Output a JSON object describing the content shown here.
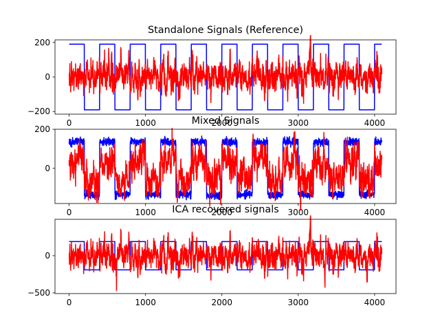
{
  "chart_data": [
    {
      "type": "line",
      "title": "Standalone Signals (Reference)",
      "xlim": [
        -185,
        4280
      ],
      "ylim": [
        -215,
        215
      ],
      "xticks": [
        0,
        1000,
        2000,
        3000,
        4000
      ],
      "yticks": [
        -200,
        0,
        200
      ],
      "grid": false,
      "series": [
        {
          "kind": "square",
          "color": "#0000ff",
          "period": 400,
          "phase": 200,
          "amp": 190,
          "n": 4096,
          "mean": 0
        },
        {
          "kind": "noise",
          "color": "#ff0000",
          "seed": 11,
          "sigma": 42,
          "n": 4096,
          "mean": 5,
          "peaks": [
            [
              520,
              110
            ],
            [
              2460,
              105
            ],
            [
              3160,
              180
            ]
          ]
        }
      ]
    },
    {
      "type": "line",
      "title": "Mixed Signals",
      "xlim": [
        -185,
        4280
      ],
      "ylim": [
        -180,
        200
      ],
      "xticks": [
        0,
        1000,
        2000,
        3000,
        4000
      ],
      "yticks": [
        0,
        200
      ],
      "grid": false,
      "series": [
        {
          "kind": "square",
          "color": "#0000ff",
          "period": 400,
          "phase": 200,
          "amp": 135,
          "n": 4096,
          "mean": 0,
          "noise_sigma": 10,
          "seed": 23
        },
        {
          "kind": "noise",
          "color": "#ff0000",
          "seed": 37,
          "sigma": 40,
          "n": 4096,
          "mean": -15,
          "square_mix": 0.45,
          "period": 400,
          "phase": 200
        }
      ]
    },
    {
      "type": "line",
      "title": "ICA recovered signals",
      "xlim": [
        -185,
        4280
      ],
      "ylim": [
        -510,
        490
      ],
      "xticks": [
        0,
        1000,
        2000,
        3000,
        4000
      ],
      "yticks": [
        -500,
        0
      ],
      "grid": false,
      "series": [
        {
          "kind": "square",
          "color": "#0000ff",
          "period": 400,
          "phase": 200,
          "amp": 190,
          "n": 4096,
          "mean": 0
        },
        {
          "kind": "noise",
          "color": "#ff0000",
          "seed": 11,
          "sigma": 90,
          "n": 4096,
          "mean": 0,
          "peaks": [
            [
              620,
              -470
            ],
            [
              3160,
              420
            ],
            [
              3350,
              -330
            ],
            [
              3900,
              -330
            ]
          ]
        }
      ]
    }
  ],
  "colors": {
    "blue": "#0000ff",
    "red": "#ff0000"
  }
}
